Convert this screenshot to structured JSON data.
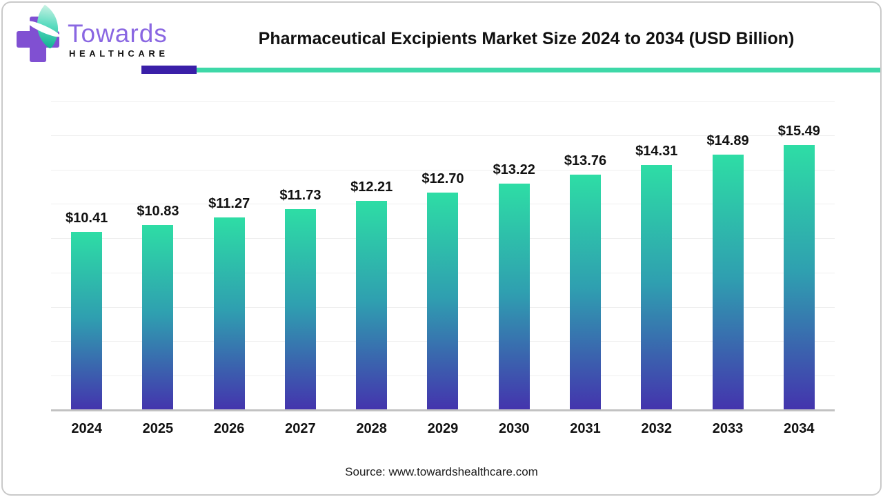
{
  "header": {
    "logo": {
      "brand_name": "Towards",
      "brand_sub": "HEALTHCARE",
      "cross_color": "#8050d2",
      "leaf_color_dark": "#0eb091",
      "leaf_color_light": "#c9f2e4",
      "brand_color": "#8a67e2"
    },
    "title": "Pharmaceutical Excipients Market Size 2024 to 2034 (USD Billion)",
    "divider": {
      "accent_color": "#3a1fa8",
      "line_color": "#3ed8a8"
    }
  },
  "chart_data": {
    "type": "bar",
    "title": "Pharmaceutical Excipients Market Size 2024 to 2034 (USD Billion)",
    "categories": [
      "2024",
      "2025",
      "2026",
      "2027",
      "2028",
      "2029",
      "2030",
      "2031",
      "2032",
      "2033",
      "2034"
    ],
    "values": [
      10.41,
      10.83,
      11.27,
      11.73,
      12.21,
      12.7,
      13.22,
      13.76,
      14.31,
      14.89,
      15.49
    ],
    "value_labels": [
      "$10.41",
      "$10.83",
      "$11.27",
      "$11.73",
      "$12.21",
      "$12.70",
      "$13.22",
      "$13.76",
      "$14.31",
      "$14.89",
      "$15.49"
    ],
    "xlabel": "",
    "ylabel": "",
    "ylim": [
      0,
      18
    ],
    "gridline_step": 2,
    "grid": true,
    "legend": false,
    "bar_gradient_top": "#2edda5",
    "bar_gradient_mid": "#2f9fb0",
    "bar_gradient_bottom": "#4433ad",
    "gridline_color": "#efefef",
    "axis_line_color": "#c2c2c2"
  },
  "footer": {
    "source": "Source: www.towardshealthcare.com"
  }
}
